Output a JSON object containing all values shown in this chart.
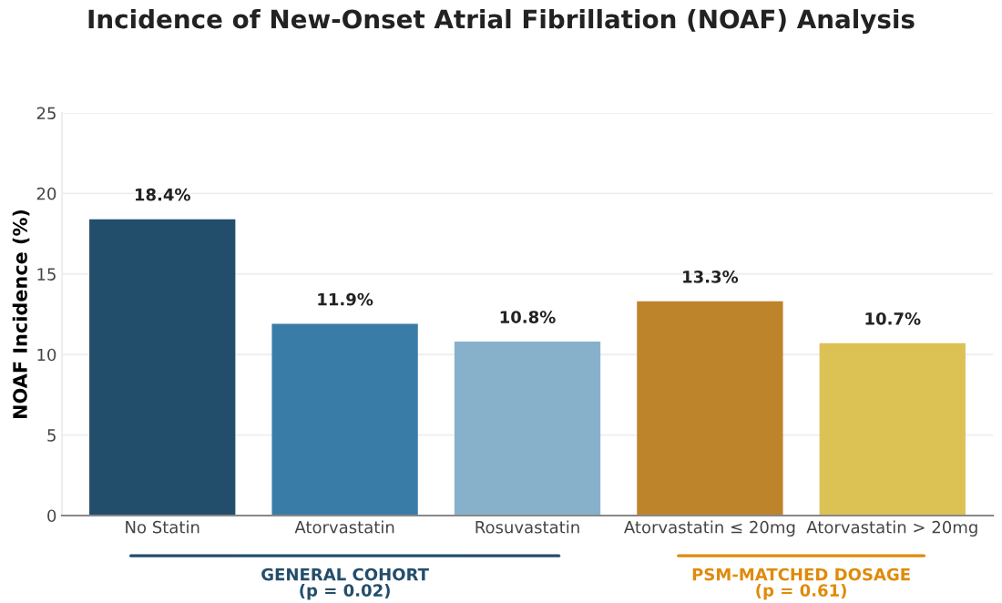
{
  "chart_data": {
    "type": "bar",
    "title": "Incidence of New-Onset Atrial Fibrillation (NOAF) Analysis",
    "ylabel": "NOAF Incidence (%)",
    "categories": [
      "No Statin",
      "Atorvastatin",
      "Rosuvastatin",
      "Atorvastatin ≤ 20mg",
      "Atorvastatin > 20mg"
    ],
    "values": [
      18.4,
      11.9,
      10.8,
      13.3,
      10.7
    ],
    "colors": [
      "#234e6b",
      "#3a7ca8",
      "#87b1cb",
      "#bd842b",
      "#dcc155"
    ],
    "value_labels": [
      "18.4%",
      "11.9%",
      "10.8%",
      "13.3%",
      "10.7%"
    ],
    "ylim": [
      0,
      25
    ],
    "yticks": [
      0,
      5,
      10,
      15,
      20,
      25
    ],
    "grid": "y",
    "legend": false,
    "annotations": [
      "GENERAL COHORT\n(p = 0.02)",
      "PSM-MATCHED DOSAGE\n(p = 0.61)"
    ]
  }
}
